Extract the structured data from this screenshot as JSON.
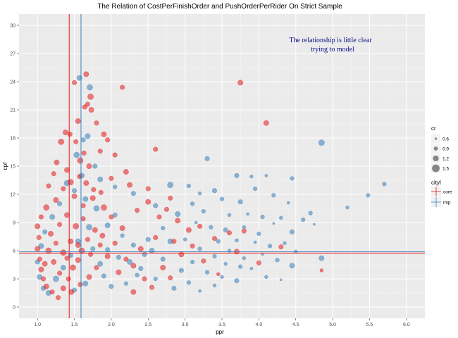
{
  "chart_data": {
    "type": "scatter",
    "title": "The Relation of CostPerFinishOrder and PushOrderPerRider On Strict Sample",
    "xlabel": "ppr",
    "ylabel": "cpf",
    "xlim": [
      0.75,
      6.25
    ],
    "ylim": [
      -1.2,
      31.2
    ],
    "x_ticks": [
      "1.0",
      "1.5",
      "2.0",
      "2.5",
      "3.0",
      "3.5",
      "4.0",
      "4.5",
      "5.0",
      "5.5",
      "6.0"
    ],
    "y_ticks": [
      "0",
      "3",
      "6",
      "9",
      "12",
      "15",
      "18",
      "21",
      "24",
      "27",
      "30"
    ],
    "grid": true,
    "annotation": [
      "The relationship is little clear",
      "trying to model"
    ],
    "reference_lines": {
      "vertical": [
        {
          "x": 1.43,
          "color": "#e41a1c"
        },
        {
          "x": 1.59,
          "color": "#377eb8"
        }
      ],
      "horizontal": [
        {
          "y": 5.75,
          "color": "#e41a1c"
        },
        {
          "y": 5.9,
          "color": "#377eb8"
        }
      ]
    },
    "size_legend": {
      "title": "cr",
      "labels": [
        "0.6",
        "0.9",
        "1.2",
        "1.5"
      ]
    },
    "color_legend": {
      "title": "cityl",
      "entries": [
        {
          "label": "core",
          "color": "#e41a1c"
        },
        {
          "label": "imp",
          "color": "#377eb8"
        }
      ]
    },
    "series": [
      {
        "name": "imp",
        "color": "#377eb8",
        "points": [
          [
            1.57,
            24.4,
            1.1
          ],
          [
            1.71,
            23.4,
            1.2
          ],
          [
            1.62,
            17.8,
            1.0
          ],
          [
            1.68,
            18.2,
            1.1
          ],
          [
            1.53,
            16.2,
            1.2
          ],
          [
            1.78,
            15.0,
            1.0
          ],
          [
            1.85,
            13.6,
            1.1
          ],
          [
            2.05,
            12.8,
            0.9
          ],
          [
            2.3,
            12.1,
            1.0
          ],
          [
            2.8,
            13.0,
            1.2
          ],
          [
            3.05,
            12.9,
            0.9
          ],
          [
            3.4,
            12.4,
            1.0
          ],
          [
            3.2,
            12.1,
            0.8
          ],
          [
            3.3,
            15.8,
            1.0
          ],
          [
            3.7,
            14.0,
            1.0
          ],
          [
            3.95,
            12.6,
            0.9
          ],
          [
            3.9,
            13.9,
            0.8
          ],
          [
            4.1,
            14.0,
            0.7
          ],
          [
            4.45,
            13.7,
            0.9
          ],
          [
            4.85,
            17.5,
            1.2
          ],
          [
            4.2,
            11.9,
            0.9
          ],
          [
            4.4,
            11.1,
            0.7
          ],
          [
            4.7,
            10.0,
            0.9
          ],
          [
            5.2,
            10.6,
            0.8
          ],
          [
            5.48,
            11.9,
            0.9
          ],
          [
            5.7,
            13.1,
            0.9
          ],
          [
            3.5,
            11.5,
            0.9
          ],
          [
            3.75,
            11.2,
            1.0
          ],
          [
            3.1,
            11.0,
            0.9
          ],
          [
            2.6,
            10.8,
            1.0
          ],
          [
            2.9,
            9.9,
            1.1
          ],
          [
            3.25,
            10.2,
            0.9
          ],
          [
            3.6,
            9.8,
            0.8
          ],
          [
            3.85,
            9.9,
            0.7
          ],
          [
            4.05,
            9.6,
            0.9
          ],
          [
            4.3,
            9.5,
            0.8
          ],
          [
            4.6,
            9.3,
            0.9
          ],
          [
            4.2,
            8.9,
            0.6
          ],
          [
            4.45,
            8.0,
            1.0
          ],
          [
            4.75,
            8.8,
            0.6
          ],
          [
            3.15,
            9.0,
            0.7
          ],
          [
            3.35,
            8.5,
            0.9
          ],
          [
            3.55,
            8.2,
            1.0
          ],
          [
            3.8,
            8.5,
            0.8
          ],
          [
            4.0,
            7.8,
            0.9
          ],
          [
            2.7,
            8.4,
            0.9
          ],
          [
            2.5,
            7.2,
            1.0
          ],
          [
            2.8,
            7.0,
            1.1
          ],
          [
            3.0,
            7.2,
            0.8
          ],
          [
            3.45,
            7.0,
            0.9
          ],
          [
            3.7,
            7.1,
            0.8
          ],
          [
            3.95,
            6.9,
            0.7
          ],
          [
            4.15,
            6.5,
            0.9
          ],
          [
            4.35,
            6.8,
            0.8
          ],
          [
            3.2,
            6.2,
            0.9
          ],
          [
            3.6,
            6.0,
            0.8
          ],
          [
            3.4,
            5.4,
            0.9
          ],
          [
            3.8,
            5.2,
            0.8
          ],
          [
            4.05,
            5.6,
            0.6
          ],
          [
            4.25,
            5.0,
            0.9
          ],
          [
            4.5,
            5.9,
            0.8
          ],
          [
            4.85,
            5.2,
            1.1
          ],
          [
            3.1,
            4.8,
            0.9
          ],
          [
            3.55,
            4.6,
            0.8
          ],
          [
            3.75,
            4.3,
            0.9
          ],
          [
            4.45,
            4.4,
            1.1
          ],
          [
            3.9,
            4.1,
            0.7
          ],
          [
            2.95,
            3.9,
            1.0
          ],
          [
            3.3,
            3.7,
            0.9
          ],
          [
            3.5,
            3.2,
            0.8
          ],
          [
            3.7,
            2.8,
            1.0
          ],
          [
            4.1,
            3.2,
            0.8
          ],
          [
            4.3,
            2.9,
            0.6
          ],
          [
            3.05,
            2.6,
            0.9
          ],
          [
            3.4,
            2.3,
            0.8
          ],
          [
            2.85,
            2.0,
            1.0
          ],
          [
            3.2,
            1.7,
            0.7
          ],
          [
            2.6,
            3.0,
            0.9
          ],
          [
            2.4,
            4.1,
            1.0
          ],
          [
            2.2,
            2.5,
            0.9
          ],
          [
            2.0,
            2.2,
            1.0
          ],
          [
            2.7,
            5.1,
            1.0
          ],
          [
            2.55,
            6.0,
            1.1
          ],
          [
            2.3,
            6.6,
            1.0
          ],
          [
            2.15,
            7.6,
            0.9
          ],
          [
            1.95,
            8.7,
            1.1
          ],
          [
            2.05,
            9.8,
            1.0
          ],
          [
            1.8,
            10.5,
            1.2
          ],
          [
            1.65,
            11.5,
            1.1
          ],
          [
            1.5,
            12.4,
            1.0
          ],
          [
            1.6,
            14.0,
            1.1
          ],
          [
            1.4,
            13.2,
            1.2
          ],
          [
            1.3,
            11.0,
            1.0
          ],
          [
            1.2,
            9.6,
            1.1
          ],
          [
            1.1,
            8.0,
            1.0
          ],
          [
            1.05,
            6.5,
            1.1
          ],
          [
            1.0,
            4.8,
            1.0
          ],
          [
            1.03,
            3.2,
            1.1
          ],
          [
            1.08,
            2.0,
            1.0
          ],
          [
            1.15,
            1.5,
            1.1
          ],
          [
            1.25,
            3.0,
            1.2
          ],
          [
            1.35,
            4.2,
            1.1
          ],
          [
            1.45,
            5.5,
            1.0
          ],
          [
            1.55,
            7.0,
            1.1
          ],
          [
            1.7,
            8.5,
            1.2
          ],
          [
            1.75,
            6.2,
            1.0
          ],
          [
            1.85,
            4.6,
            1.1
          ],
          [
            1.9,
            3.3,
            1.0
          ],
          [
            1.65,
            2.5,
            1.1
          ],
          [
            1.5,
            1.8,
            1.0
          ],
          [
            2.1,
            5.3,
            1.0
          ],
          [
            2.25,
            4.8,
            1.1
          ],
          [
            2.45,
            5.6,
            1.0
          ],
          [
            2.35,
            3.4,
            0.9
          ],
          [
            1.95,
            6.1,
            1.0
          ]
        ]
      },
      {
        "name": "core",
        "color": "#e41a1c",
        "points": [
          [
            1.66,
            24.8,
            1.1
          ],
          [
            1.5,
            23.9,
            1.0
          ],
          [
            1.72,
            22.4,
            1.2
          ],
          [
            1.68,
            21.6,
            1.0
          ],
          [
            1.73,
            21.0,
            1.1
          ],
          [
            1.64,
            21.3,
            1.0
          ],
          [
            2.15,
            23.4,
            1.0
          ],
          [
            1.55,
            19.8,
            1.1
          ],
          [
            1.8,
            19.6,
            1.0
          ],
          [
            1.9,
            18.4,
            1.1
          ],
          [
            1.95,
            17.8,
            1.0
          ],
          [
            1.38,
            18.6,
            1.1
          ],
          [
            1.44,
            18.4,
            1.0
          ],
          [
            1.32,
            17.6,
            1.2
          ],
          [
            1.52,
            17.6,
            1.0
          ],
          [
            1.26,
            15.4,
            1.1
          ],
          [
            1.58,
            15.6,
            1.2
          ],
          [
            1.63,
            16.4,
            1.0
          ],
          [
            1.7,
            15.0,
            1.1
          ],
          [
            1.85,
            16.6,
            1.0
          ],
          [
            2.05,
            16.2,
            1.0
          ],
          [
            2.6,
            16.8,
            1.0
          ],
          [
            2.2,
            14.4,
            1.1
          ],
          [
            2.0,
            13.7,
            1.0
          ],
          [
            2.25,
            13.0,
            1.1
          ],
          [
            1.15,
            12.9,
            1.0
          ],
          [
            1.22,
            14.2,
            1.0
          ],
          [
            1.4,
            14.6,
            1.1
          ],
          [
            1.45,
            13.3,
            1.2
          ],
          [
            1.57,
            13.9,
            1.0
          ],
          [
            1.66,
            13.2,
            1.1
          ],
          [
            1.76,
            12.5,
            1.0
          ],
          [
            1.86,
            12.2,
            1.0
          ],
          [
            3.75,
            23.9,
            1.1
          ],
          [
            4.1,
            19.6,
            1.1
          ],
          [
            2.8,
            11.6,
            1.0
          ],
          [
            2.5,
            11.2,
            1.1
          ],
          [
            2.35,
            10.3,
            1.0
          ],
          [
            2.65,
            9.6,
            1.0
          ],
          [
            2.9,
            9.2,
            1.1
          ],
          [
            3.2,
            8.6,
            1.0
          ],
          [
            3.4,
            7.3,
            1.0
          ],
          [
            3.6,
            7.9,
            1.0
          ],
          [
            3.8,
            8.1,
            1.0
          ],
          [
            3.1,
            6.5,
            1.0
          ],
          [
            2.95,
            5.6,
            1.1
          ],
          [
            3.25,
            4.9,
            1.0
          ],
          [
            3.7,
            5.9,
            1.1
          ],
          [
            4.3,
            6.4,
            1.0
          ],
          [
            4.85,
            3.9,
            0.8
          ],
          [
            4.0,
            4.7,
            1.0
          ],
          [
            3.45,
            3.5,
            0.8
          ],
          [
            2.8,
            3.1,
            1.0
          ],
          [
            2.55,
            2.1,
            1.0
          ],
          [
            2.3,
            1.6,
            1.1
          ],
          [
            2.1,
            3.7,
            1.1
          ],
          [
            2.2,
            5.1,
            1.0
          ],
          [
            2.4,
            6.2,
            1.1
          ],
          [
            2.6,
            7.4,
            1.0
          ],
          [
            2.15,
            8.4,
            1.1
          ],
          [
            2.0,
            9.6,
            1.0
          ],
          [
            1.9,
            10.6,
            1.2
          ],
          [
            1.75,
            11.6,
            1.1
          ],
          [
            1.62,
            10.8,
            1.0
          ],
          [
            1.5,
            11.8,
            1.1
          ],
          [
            1.35,
            12.6,
            1.0
          ],
          [
            1.25,
            11.4,
            1.1
          ],
          [
            1.12,
            10.6,
            1.2
          ],
          [
            1.05,
            9.6,
            1.0
          ],
          [
            1.0,
            8.6,
            1.1
          ],
          [
            1.02,
            7.4,
            1.0
          ],
          [
            1.0,
            6.2,
            1.1
          ],
          [
            1.03,
            5.1,
            1.0
          ],
          [
            1.05,
            4.0,
            1.1
          ],
          [
            1.08,
            3.0,
            1.0
          ],
          [
            1.12,
            2.2,
            1.1
          ],
          [
            1.2,
            1.6,
            1.0
          ],
          [
            1.28,
            1.0,
            1.0
          ],
          [
            1.35,
            2.0,
            1.1
          ],
          [
            1.42,
            3.0,
            1.0
          ],
          [
            1.48,
            4.2,
            1.2
          ],
          [
            1.55,
            5.0,
            1.1
          ],
          [
            1.6,
            6.0,
            1.2
          ],
          [
            1.68,
            7.2,
            1.0
          ],
          [
            1.78,
            8.2,
            1.1
          ],
          [
            1.85,
            6.6,
            1.0
          ],
          [
            1.95,
            5.4,
            1.1
          ],
          [
            1.8,
            4.2,
            1.0
          ],
          [
            1.7,
            3.2,
            1.1
          ],
          [
            1.58,
            2.4,
            1.0
          ],
          [
            1.46,
            1.6,
            1.1
          ],
          [
            1.3,
            3.6,
            1.0
          ],
          [
            1.22,
            4.8,
            1.1
          ],
          [
            1.15,
            6.0,
            1.2
          ],
          [
            1.18,
            7.8,
            1.1
          ],
          [
            1.3,
            8.8,
            1.0
          ],
          [
            1.4,
            9.8,
            1.1
          ],
          [
            1.52,
            8.6,
            1.2
          ],
          [
            1.62,
            9.4,
            1.0
          ],
          [
            1.45,
            7.0,
            1.1
          ],
          [
            1.35,
            5.8,
            1.2
          ],
          [
            1.25,
            6.8,
            1.0
          ],
          [
            1.1,
            4.6,
            1.1
          ],
          [
            1.4,
            5.2,
            1.0
          ],
          [
            1.55,
            6.6,
            1.1
          ],
          [
            1.72,
            5.6,
            1.0
          ],
          [
            1.88,
            7.6,
            1.1
          ],
          [
            2.05,
            6.8,
            1.0
          ],
          [
            2.3,
            4.4,
            1.1
          ],
          [
            2.45,
            3.0,
            1.0
          ],
          [
            2.7,
            4.2,
            1.1
          ],
          [
            2.85,
            7.0,
            1.0
          ],
          [
            3.05,
            8.2,
            1.1
          ],
          [
            2.75,
            10.4,
            1.0
          ],
          [
            2.5,
            12.6,
            1.0
          ]
        ]
      }
    ]
  }
}
